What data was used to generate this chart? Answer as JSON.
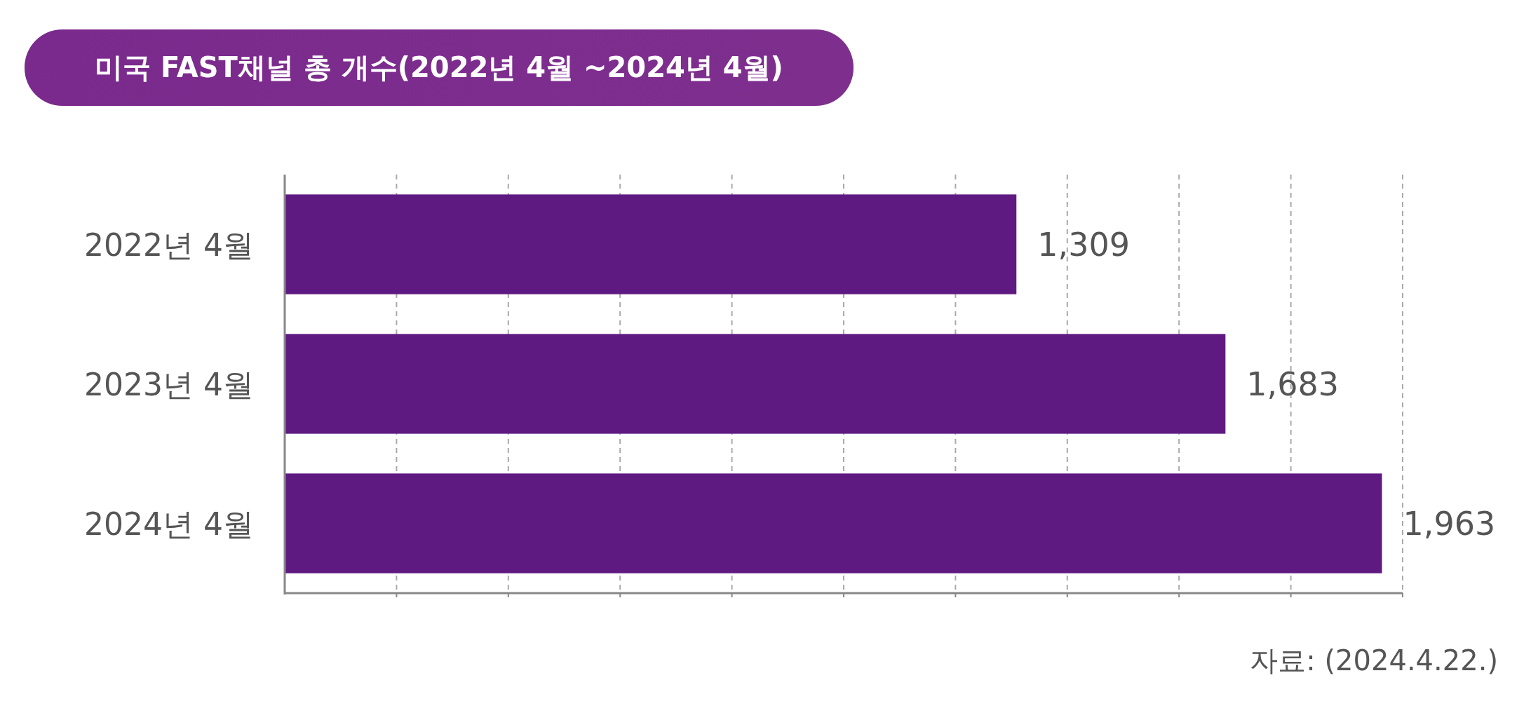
{
  "chart_data": {
    "type": "bar",
    "orientation": "horizontal",
    "title": "미국 FAST채널 총 개수(2022년 4월 ~2024년 4월)",
    "categories": [
      "2022년 4월",
      "2023년 4월",
      "2024년 4월"
    ],
    "values": [
      1309,
      1683,
      1963
    ],
    "color": "#5f1a82",
    "data_labels": true,
    "value_labels": [
      "1,309",
      "1,683",
      "1,963"
    ],
    "xlim": [
      0,
      2000
    ],
    "xticks": [
      {
        "value": 200,
        "label": null
      },
      {
        "value": 400,
        "label": null
      },
      {
        "value": 600,
        "label": null
      },
      {
        "value": 800,
        "label": null
      },
      {
        "value": 1000,
        "label": null
      },
      {
        "value": 1200,
        "label": null
      },
      {
        "value": 1400,
        "label": null
      },
      {
        "value": 1600,
        "label": null
      },
      {
        "value": 1800,
        "label": null
      },
      {
        "value": 2000,
        "label": null
      }
    ],
    "grid": "x",
    "tick_labels": "y",
    "annotations": [
      "자료: (2024.4.22.)"
    ]
  }
}
